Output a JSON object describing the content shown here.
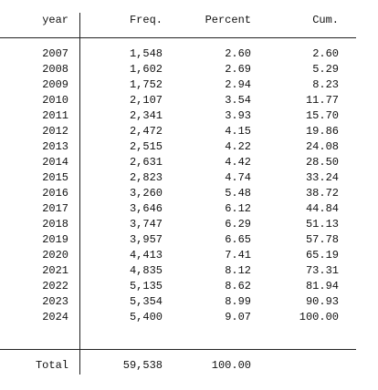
{
  "table": {
    "header": [
      "year",
      "Freq.",
      "Percent",
      "Cum."
    ],
    "rows": [
      [
        "2007",
        "1,548",
        "2.60",
        "2.60"
      ],
      [
        "2008",
        "1,602",
        "2.69",
        "5.29"
      ],
      [
        "2009",
        "1,752",
        "2.94",
        "8.23"
      ],
      [
        "2010",
        "2,107",
        "3.54",
        "11.77"
      ],
      [
        "2011",
        "2,341",
        "3.93",
        "15.70"
      ],
      [
        "2012",
        "2,472",
        "4.15",
        "19.86"
      ],
      [
        "2013",
        "2,515",
        "4.22",
        "24.08"
      ],
      [
        "2014",
        "2,631",
        "4.42",
        "28.50"
      ],
      [
        "2015",
        "2,823",
        "4.74",
        "33.24"
      ],
      [
        "2016",
        "3,260",
        "5.48",
        "38.72"
      ],
      [
        "2017",
        "3,646",
        "6.12",
        "44.84"
      ],
      [
        "2018",
        "3,747",
        "6.29",
        "51.13"
      ],
      [
        "2019",
        "3,957",
        "6.65",
        "57.78"
      ],
      [
        "2020",
        "4,413",
        "7.41",
        "65.19"
      ],
      [
        "2021",
        "4,835",
        "8.12",
        "73.31"
      ],
      [
        "2022",
        "5,135",
        "8.62",
        "81.94"
      ],
      [
        "2023",
        "5,354",
        "8.99",
        "90.93"
      ],
      [
        "2024",
        "5,400",
        "9.07",
        "100.00"
      ]
    ],
    "total": [
      "Total",
      "59,538",
      "100.00"
    ]
  }
}
